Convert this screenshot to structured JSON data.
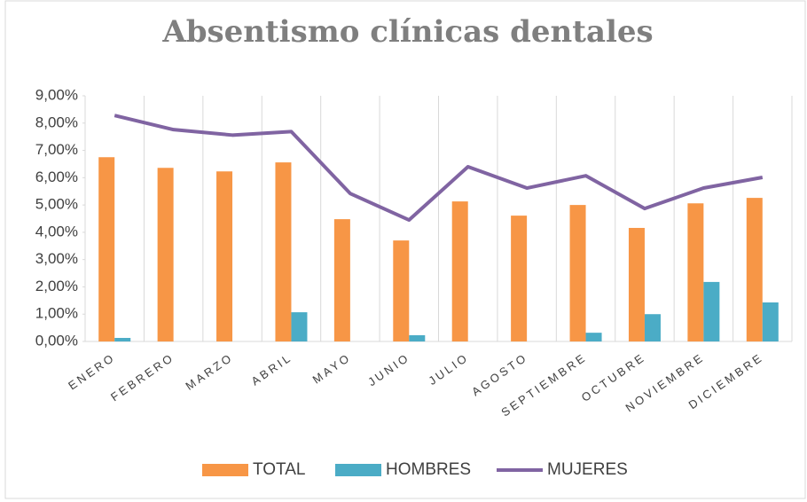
{
  "chart_data": {
    "type": "bar",
    "title": "Absentismo clínicas dentales",
    "categories": [
      "ENERO",
      "FEBRERO",
      "MARZO",
      "ABRIL",
      "MAYO",
      "JUNIO",
      "JULIO",
      "AGOSTO",
      "SEPTIEMBRE",
      "OCTUBRE",
      "NOVIEMBRE",
      "DICIEMBRE"
    ],
    "series": [
      {
        "name": "TOTAL",
        "type": "bar",
        "color": "#f79646",
        "values": [
          6.75,
          6.36,
          6.23,
          6.56,
          4.48,
          3.7,
          5.13,
          4.61,
          5.0,
          4.16,
          5.06,
          5.26
        ]
      },
      {
        "name": "HOMBRES",
        "type": "bar",
        "color": "#4bacc6",
        "values": [
          0.13,
          0,
          0,
          1.07,
          0,
          0.23,
          0,
          0,
          0.32,
          1.0,
          2.18,
          1.43
        ]
      },
      {
        "name": "MUJERES",
        "type": "line",
        "color": "#8064a2",
        "values": [
          8.28,
          7.76,
          7.56,
          7.69,
          5.42,
          4.45,
          6.4,
          5.62,
          6.07,
          4.87,
          5.62,
          6.01
        ]
      }
    ],
    "ylim": [
      0,
      9
    ],
    "yticks": [
      {
        "value": 0,
        "label": "0,00%"
      },
      {
        "value": 1,
        "label": "1,00%"
      },
      {
        "value": 2,
        "label": "2,00%"
      },
      {
        "value": 3,
        "label": "3,00%"
      },
      {
        "value": 4,
        "label": "4,00%"
      },
      {
        "value": 5,
        "label": "5,00%"
      },
      {
        "value": 6,
        "label": "6,00%"
      },
      {
        "value": 7,
        "label": "7,00%"
      },
      {
        "value": 8,
        "label": "8,00%"
      },
      {
        "value": 9,
        "label": "9,00%"
      }
    ],
    "legend": "bottom"
  }
}
